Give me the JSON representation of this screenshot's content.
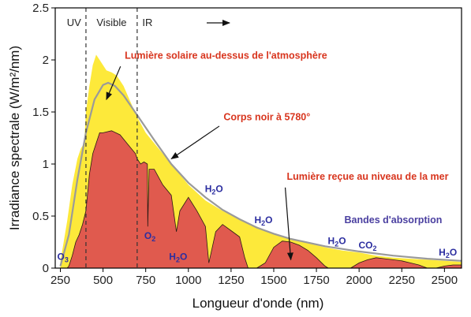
{
  "chart_data": {
    "type": "area",
    "title": "",
    "xlabel": "Longueur d'onde (nm)",
    "ylabel": "Irradiance spectrale (W/m²/nm)",
    "xlim": [
      220,
      2600
    ],
    "ylim": [
      0,
      2.5
    ],
    "xticks": [
      "250",
      "500",
      "750",
      "1000",
      "1250",
      "1500",
      "1750",
      "2000",
      "2250",
      "2500"
    ],
    "yticks": [
      "0",
      "0.5",
      "1",
      "1.5",
      "2",
      "2.5"
    ],
    "grid": false,
    "regions": [
      {
        "label": "UV",
        "x": 330
      },
      {
        "label": "Visible",
        "x": 550
      },
      {
        "label": "IR",
        "x": 760
      }
    ],
    "region_dividers": [
      400,
      700
    ],
    "series": [
      {
        "name": "Lumière solaire au-dessus de l'atmosphère",
        "color": "#fde93a",
        "x": [
          250,
          290,
          320,
          350,
          370,
          390,
          400,
          420,
          440,
          460,
          480,
          500,
          520,
          550,
          580,
          620,
          660,
          700,
          750,
          800,
          900,
          1000,
          1100,
          1200,
          1300,
          1400,
          1500,
          1600,
          1700,
          1800,
          1900,
          2000,
          2100,
          2200,
          2300,
          2400,
          2500,
          2600
        ],
        "y": [
          0.06,
          0.45,
          0.8,
          1.05,
          1.15,
          1.2,
          1.5,
          1.75,
          1.95,
          2.05,
          2.0,
          1.95,
          1.9,
          1.88,
          1.85,
          1.75,
          1.6,
          1.45,
          1.3,
          1.2,
          1.0,
          0.8,
          0.65,
          0.55,
          0.47,
          0.4,
          0.33,
          0.28,
          0.24,
          0.2,
          0.17,
          0.15,
          0.12,
          0.1,
          0.09,
          0.08,
          0.07,
          0.06
        ]
      },
      {
        "name": "Corps noir à 5780°",
        "color": "#9a9a9a",
        "x": [
          250,
          300,
          350,
          400,
          450,
          500,
          530,
          570,
          620,
          700,
          800,
          900,
          1000,
          1100,
          1200,
          1300,
          1400,
          1500,
          1600,
          1800,
          2000,
          2200,
          2400,
          2600
        ],
        "y": [
          0.02,
          0.32,
          0.85,
          1.3,
          1.62,
          1.76,
          1.78,
          1.75,
          1.66,
          1.47,
          1.23,
          1.0,
          0.82,
          0.68,
          0.56,
          0.47,
          0.39,
          0.33,
          0.28,
          0.21,
          0.16,
          0.12,
          0.09,
          0.07
        ]
      },
      {
        "name": "Lumière reçue au niveau de la mer",
        "color": "#e05a4e",
        "x": [
          290,
          300,
          320,
          340,
          360,
          380,
          400,
          420,
          440,
          460,
          480,
          500,
          550,
          600,
          650,
          690,
          700,
          720,
          740,
          760,
          762,
          770,
          800,
          850,
          900,
          930,
          950,
          1000,
          1050,
          1100,
          1120,
          1140,
          1160,
          1200,
          1250,
          1300,
          1330,
          1350,
          1380,
          1400,
          1420,
          1450,
          1500,
          1550,
          1600,
          1650,
          1700,
          1750,
          1800,
          1820,
          1850,
          1900,
          1950,
          1970,
          2000,
          2050,
          2100,
          2150,
          2200,
          2250,
          2300,
          2350,
          2400,
          2450,
          2500,
          2550,
          2600
        ],
        "y": [
          0.0,
          0.02,
          0.12,
          0.25,
          0.32,
          0.42,
          0.55,
          0.9,
          1.1,
          1.2,
          1.3,
          1.3,
          1.32,
          1.28,
          1.18,
          1.1,
          1.05,
          1.0,
          1.02,
          1.0,
          0.4,
          0.95,
          0.95,
          0.8,
          0.7,
          0.35,
          0.55,
          0.68,
          0.55,
          0.4,
          0.05,
          0.2,
          0.35,
          0.42,
          0.36,
          0.3,
          0.1,
          0.0,
          0.0,
          0.0,
          0.02,
          0.05,
          0.2,
          0.26,
          0.25,
          0.22,
          0.17,
          0.1,
          0.02,
          0.0,
          0.0,
          0.0,
          0.0,
          0.02,
          0.05,
          0.08,
          0.1,
          0.09,
          0.08,
          0.07,
          0.05,
          0.03,
          0.0,
          0.0,
          0.02,
          0.03,
          0.03
        ]
      }
    ],
    "annotations": [
      {
        "text": "Lumière solaire au-dessus de l'atmosphère",
        "style": "red",
        "x": 1220,
        "y": 2.01,
        "arrow_to": [
          520,
          1.62
        ]
      },
      {
        "text": "Corps noir à 5780°",
        "style": "red",
        "x": 1460,
        "y": 1.42,
        "arrow_to": [
          900,
          1.05
        ]
      },
      {
        "text": "Lumière reçue au niveau de la mer",
        "style": "red",
        "x": 2050,
        "y": 0.85,
        "arrow_to": [
          1600,
          0.08
        ]
      },
      {
        "text": "Bandes d'absorption",
        "style": "purple",
        "x": 2200,
        "y": 0.43
      }
    ],
    "absorption_bands": [
      {
        "label": "O",
        "sub": "3",
        "x": 265,
        "y": 0.08
      },
      {
        "label": "O",
        "sub": "2",
        "x": 775,
        "y": 0.28
      },
      {
        "label": "H",
        "sub": "2",
        "tail": "O",
        "x": 940,
        "y": 0.08
      },
      {
        "label": "H",
        "sub": "2",
        "tail": "O",
        "x": 1150,
        "y": 0.73
      },
      {
        "label": "H",
        "sub": "2",
        "tail": "O",
        "x": 1440,
        "y": 0.43
      },
      {
        "label": "H",
        "sub": "2",
        "tail": "O",
        "x": 1870,
        "y": 0.23
      },
      {
        "label": "CO",
        "sub": "2",
        "tail": "",
        "x": 2050,
        "y": 0.19
      },
      {
        "label": "H",
        "sub": "2",
        "tail": "O",
        "x": 2520,
        "y": 0.12
      }
    ]
  }
}
